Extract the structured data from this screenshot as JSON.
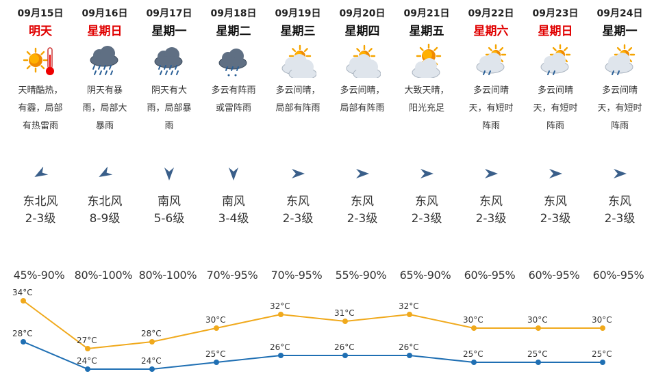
{
  "days": [
    {
      "date": "09月15日",
      "weekday": "明天",
      "red": true,
      "icon": "sun-thermometer-icon",
      "desc": "天晴酷热，有霾，局部有热雷雨",
      "wind_icon": "wind-arrow-northeast-icon",
      "wind_dir": "东北风",
      "wind_level": "2-3级",
      "humidity": "45%-90%"
    },
    {
      "date": "09月16日",
      "weekday": "星期日",
      "red": true,
      "icon": "heavy-rain-icon",
      "desc": "阴天有暴雨，局部大暴雨",
      "wind_icon": "wind-arrow-northeast-icon",
      "wind_dir": "东北风",
      "wind_level": "8-9级",
      "humidity": "80%-100%"
    },
    {
      "date": "09月17日",
      "weekday": "星期一",
      "red": false,
      "icon": "rain-icon",
      "desc": "阴天有大雨，局部暴雨",
      "wind_icon": "wind-arrow-south-icon",
      "wind_dir": "南风",
      "wind_level": "5-6级",
      "humidity": "80%-100%"
    },
    {
      "date": "09月18日",
      "weekday": "星期二",
      "red": false,
      "icon": "thunder-shower-icon",
      "desc": "多云有阵雨或雷阵雨",
      "wind_icon": "wind-arrow-south-icon",
      "wind_dir": "南风",
      "wind_level": "3-4级",
      "humidity": "70%-95%"
    },
    {
      "date": "09月19日",
      "weekday": "星期三",
      "red": false,
      "icon": "partly-cloudy-icon",
      "desc": "多云间晴，局部有阵雨",
      "wind_icon": "wind-arrow-east-icon",
      "wind_dir": "东风",
      "wind_level": "2-3级",
      "humidity": "70%-95%"
    },
    {
      "date": "09月20日",
      "weekday": "星期四",
      "red": false,
      "icon": "partly-cloudy-icon",
      "desc": "多云间晴，局部有阵雨",
      "wind_icon": "wind-arrow-east-icon",
      "wind_dir": "东风",
      "wind_level": "2-3级",
      "humidity": "55%-90%"
    },
    {
      "date": "09月21日",
      "weekday": "星期五",
      "red": false,
      "icon": "mostly-sunny-icon",
      "desc": "大致天晴，阳光充足",
      "wind_icon": "wind-arrow-east-icon",
      "wind_dir": "东风",
      "wind_level": "2-3级",
      "humidity": "65%-90%"
    },
    {
      "date": "09月22日",
      "weekday": "星期六",
      "red": true,
      "icon": "sun-cloud-shower-icon",
      "desc": "多云间晴天，有短时阵雨",
      "wind_icon": "wind-arrow-east-icon",
      "wind_dir": "东风",
      "wind_level": "2-3级",
      "humidity": "60%-95%"
    },
    {
      "date": "09月23日",
      "weekday": "星期日",
      "red": true,
      "icon": "sun-cloud-shower-icon",
      "desc": "多云间晴天，有短时阵雨",
      "wind_icon": "wind-arrow-east-icon",
      "wind_dir": "东风",
      "wind_level": "2-3级",
      "humidity": "60%-95%"
    },
    {
      "date": "09月24日",
      "weekday": "星期一",
      "red": false,
      "icon": "sun-cloud-shower-icon",
      "desc": "多云间晴天，有短时阵雨",
      "wind_icon": "wind-arrow-east-icon",
      "wind_dir": "东风",
      "wind_level": "2-3级",
      "humidity": "60%-95%"
    }
  ],
  "colors": {
    "high": "#f0a91c",
    "low": "#1f6fb3",
    "weekend": "#e00000",
    "arrow": "#3a5f8a"
  },
  "chart_data": {
    "type": "line",
    "x": [
      "09月15日",
      "09月16日",
      "09月17日",
      "09月18日",
      "09月19日",
      "09月20日",
      "09月21日",
      "09月22日",
      "09月23日",
      "09月24日"
    ],
    "series": [
      {
        "values": [
          34,
          27,
          28,
          30,
          32,
          31,
          32,
          30,
          30,
          30
        ],
        "labels": [
          "34°C",
          "27°C",
          "28°C",
          "30°C",
          "32°C",
          "31°C",
          "32°C",
          "30°C",
          "30°C",
          "30°C"
        ]
      },
      {
        "values": [
          28,
          24,
          24,
          25,
          26,
          26,
          26,
          25,
          25,
          25
        ],
        "labels": [
          "28°C",
          "24°C",
          "24°C",
          "25°C",
          "26°C",
          "26°C",
          "26°C",
          "25°C",
          "25°C",
          "25°C"
        ]
      }
    ],
    "unit": "°C",
    "ylim": [
      23,
      35
    ],
    "grid": false,
    "legend": "none"
  }
}
